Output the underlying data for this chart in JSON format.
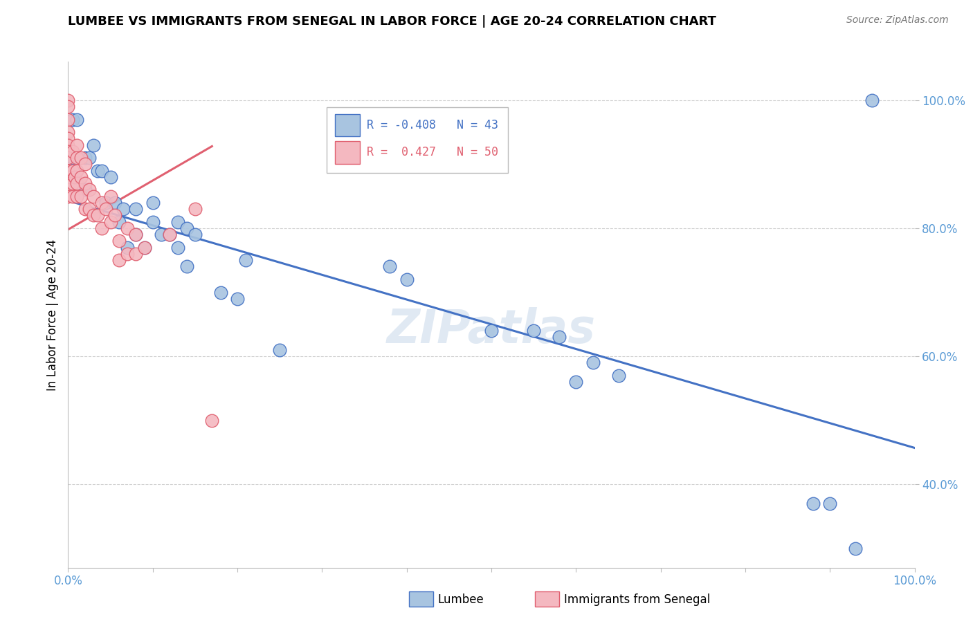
{
  "title": "LUMBEE VS IMMIGRANTS FROM SENEGAL IN LABOR FORCE | AGE 20-24 CORRELATION CHART",
  "source": "Source: ZipAtlas.com",
  "ylabel": "In Labor Force | Age 20-24",
  "watermark": "ZIPatlas",
  "legend_lumbee_R": -0.408,
  "legend_lumbee_N": 43,
  "legend_senegal_R": 0.427,
  "legend_senegal_N": 50,
  "xlim": [
    0.0,
    1.0
  ],
  "ylim": [
    0.27,
    1.06
  ],
  "yticks": [
    0.4,
    0.6,
    0.8,
    1.0
  ],
  "ytick_labels": [
    "40.0%",
    "60.0%",
    "80.0%",
    "100.0%"
  ],
  "xtick_positions": [
    0.0,
    0.1,
    0.2,
    0.3,
    0.4,
    0.5,
    0.6,
    0.7,
    0.8,
    0.9,
    1.0
  ],
  "xtick_labels": [
    "0.0%",
    "",
    "",
    "",
    "",
    "",
    "",
    "",
    "",
    "",
    "100.0%"
  ],
  "lumbee_color": "#a8c4e0",
  "senegal_color": "#f4b8c0",
  "lumbee_edge_color": "#4472c4",
  "senegal_edge_color": "#e06070",
  "lumbee_line_color": "#4472c4",
  "senegal_line_color": "#e06070",
  "axis_color": "#5b9bd5",
  "grid_color": "#d0d0d0",
  "lumbee_x": [
    0.005,
    0.005,
    0.01,
    0.02,
    0.02,
    0.025,
    0.03,
    0.035,
    0.04,
    0.045,
    0.05,
    0.055,
    0.06,
    0.065,
    0.07,
    0.08,
    0.08,
    0.09,
    0.1,
    0.1,
    0.11,
    0.12,
    0.13,
    0.13,
    0.14,
    0.14,
    0.15,
    0.18,
    0.2,
    0.21,
    0.25,
    0.38,
    0.4,
    0.5,
    0.55,
    0.58,
    0.6,
    0.62,
    0.65,
    0.88,
    0.9,
    0.93,
    0.95
  ],
  "lumbee_y": [
    0.97,
    0.91,
    0.97,
    0.91,
    0.86,
    0.91,
    0.93,
    0.89,
    0.89,
    0.84,
    0.88,
    0.84,
    0.81,
    0.83,
    0.77,
    0.79,
    0.83,
    0.77,
    0.84,
    0.81,
    0.79,
    0.79,
    0.81,
    0.77,
    0.8,
    0.74,
    0.79,
    0.7,
    0.69,
    0.75,
    0.61,
    0.74,
    0.72,
    0.64,
    0.64,
    0.63,
    0.56,
    0.59,
    0.57,
    0.37,
    0.37,
    0.3,
    1.0
  ],
  "senegal_x": [
    0.0,
    0.0,
    0.0,
    0.0,
    0.0,
    0.0,
    0.0,
    0.0,
    0.0,
    0.0,
    0.0,
    0.0,
    0.0,
    0.005,
    0.005,
    0.005,
    0.005,
    0.008,
    0.01,
    0.01,
    0.01,
    0.01,
    0.01,
    0.015,
    0.015,
    0.015,
    0.02,
    0.02,
    0.02,
    0.025,
    0.025,
    0.03,
    0.03,
    0.035,
    0.04,
    0.04,
    0.045,
    0.05,
    0.05,
    0.055,
    0.06,
    0.06,
    0.07,
    0.07,
    0.08,
    0.08,
    0.09,
    0.12,
    0.15,
    0.17
  ],
  "senegal_y": [
    1.0,
    0.99,
    0.97,
    0.95,
    0.94,
    0.93,
    0.92,
    0.91,
    0.89,
    0.88,
    0.87,
    0.86,
    0.85,
    0.92,
    0.89,
    0.87,
    0.85,
    0.88,
    0.93,
    0.91,
    0.89,
    0.87,
    0.85,
    0.91,
    0.88,
    0.85,
    0.9,
    0.87,
    0.83,
    0.86,
    0.83,
    0.85,
    0.82,
    0.82,
    0.84,
    0.8,
    0.83,
    0.85,
    0.81,
    0.82,
    0.78,
    0.75,
    0.8,
    0.76,
    0.79,
    0.76,
    0.77,
    0.79,
    0.83,
    0.5
  ],
  "lumbee_trend_x0": 0.0,
  "lumbee_trend_y0": 0.843,
  "lumbee_trend_x1": 1.0,
  "lumbee_trend_y1": 0.457,
  "senegal_trend_x0": 0.0,
  "senegal_trend_y0": 0.798,
  "senegal_trend_x1": 0.17,
  "senegal_trend_y1": 0.928
}
